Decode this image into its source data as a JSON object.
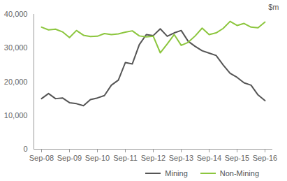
{
  "chart_data": {
    "type": "line",
    "y_label": "$m",
    "categories": [
      "Sep-08",
      null,
      null,
      null,
      "Sep-09",
      null,
      null,
      null,
      "Sep-10",
      null,
      null,
      null,
      "Sep-11",
      null,
      null,
      null,
      "Sep-12",
      null,
      null,
      null,
      "Sep-13",
      null,
      null,
      null,
      "Sep-14",
      null,
      null,
      null,
      "Sep-15",
      null,
      null,
      null,
      "Sep-16"
    ],
    "series": [
      {
        "name": "Mining",
        "color": "#555555",
        "values": [
          15000,
          16500,
          15000,
          15200,
          13800,
          13500,
          12900,
          14700,
          15200,
          15900,
          19000,
          20500,
          25700,
          25300,
          31000,
          34000,
          33700,
          35700,
          33500,
          34500,
          35200,
          32000,
          30500,
          29200,
          28500,
          27800,
          25000,
          22500,
          21300,
          19700,
          19000,
          16100,
          14400
        ]
      },
      {
        "name": "Non-Mining",
        "color": "#8cc63e",
        "values": [
          36200,
          35400,
          35600,
          34800,
          33100,
          35200,
          33800,
          33400,
          33500,
          34300,
          34000,
          34200,
          34700,
          35100,
          33600,
          33300,
          33500,
          28600,
          31200,
          34000,
          30800,
          31700,
          33600,
          35900,
          34000,
          34500,
          35800,
          37900,
          36700,
          37300,
          36200,
          36000,
          37700
        ]
      }
    ],
    "ylim": [
      0,
      40000
    ],
    "yticks": [
      0,
      {
        "value": 10000,
        "label": "10,000"
      },
      {
        "value": 20000,
        "label": "20,000"
      },
      {
        "value": 30000,
        "label": "30,000"
      },
      {
        "value": 40000,
        "label": "40,000"
      }
    ],
    "grid": false,
    "legend": "bottom"
  }
}
